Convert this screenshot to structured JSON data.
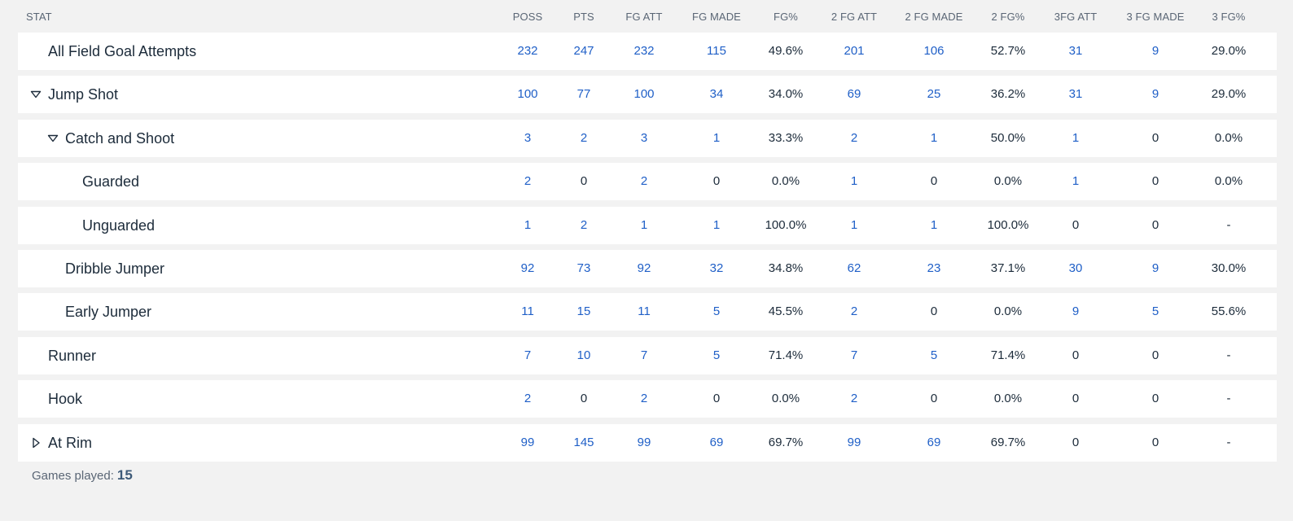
{
  "header": {
    "stat_label": "STAT",
    "columns": [
      "POSS",
      "PTS",
      "FG ATT",
      "FG MADE",
      "FG%",
      "2 FG ATT",
      "2 FG MADE",
      "2 FG%",
      "3FG ATT",
      "3 FG MADE",
      "3 FG%"
    ]
  },
  "rows": [
    {
      "label": "All Field Goal Attempts",
      "toggle": "none",
      "values": [
        "232",
        "247",
        "232",
        "115",
        "49.6%",
        "201",
        "106",
        "52.7%",
        "31",
        "9",
        "29.0%"
      ]
    },
    {
      "label": "Jump Shot",
      "toggle": "expanded",
      "values": [
        "100",
        "77",
        "100",
        "34",
        "34.0%",
        "69",
        "25",
        "36.2%",
        "31",
        "9",
        "29.0%"
      ]
    },
    {
      "label": "Catch and Shoot",
      "toggle": "expanded",
      "values": [
        "3",
        "2",
        "3",
        "1",
        "33.3%",
        "2",
        "1",
        "50.0%",
        "1",
        "0",
        "0.0%"
      ]
    },
    {
      "label": "Guarded",
      "toggle": "none",
      "values": [
        "2",
        "0",
        "2",
        "0",
        "0.0%",
        "1",
        "0",
        "0.0%",
        "1",
        "0",
        "0.0%"
      ]
    },
    {
      "label": "Unguarded",
      "toggle": "none",
      "values": [
        "1",
        "2",
        "1",
        "1",
        "100.0%",
        "1",
        "1",
        "100.0%",
        "0",
        "0",
        "-"
      ]
    },
    {
      "label": "Dribble Jumper",
      "toggle": "none",
      "values": [
        "92",
        "73",
        "92",
        "32",
        "34.8%",
        "62",
        "23",
        "37.1%",
        "30",
        "9",
        "30.0%"
      ]
    },
    {
      "label": "Early Jumper",
      "toggle": "none",
      "values": [
        "11",
        "15",
        "11",
        "5",
        "45.5%",
        "2",
        "0",
        "0.0%",
        "9",
        "5",
        "55.6%"
      ]
    },
    {
      "label": "Runner",
      "toggle": "none",
      "values": [
        "7",
        "10",
        "7",
        "5",
        "71.4%",
        "7",
        "5",
        "71.4%",
        "0",
        "0",
        "-"
      ]
    },
    {
      "label": "Hook",
      "toggle": "none",
      "values": [
        "2",
        "0",
        "2",
        "0",
        "0.0%",
        "2",
        "0",
        "0.0%",
        "0",
        "0",
        "-"
      ]
    },
    {
      "label": "At Rim",
      "toggle": "collapsed",
      "values": [
        "99",
        "145",
        "99",
        "69",
        "69.7%",
        "99",
        "69",
        "69.7%",
        "0",
        "0",
        "-"
      ]
    }
  ],
  "footer": {
    "games_played_label": "Games played:",
    "games_played_value": "15"
  },
  "colors": {
    "link": "#1f5fc7",
    "text": "#1c2b3a",
    "header": "#5a6675",
    "background": "#f2f2f2",
    "row": "#ffffff"
  }
}
